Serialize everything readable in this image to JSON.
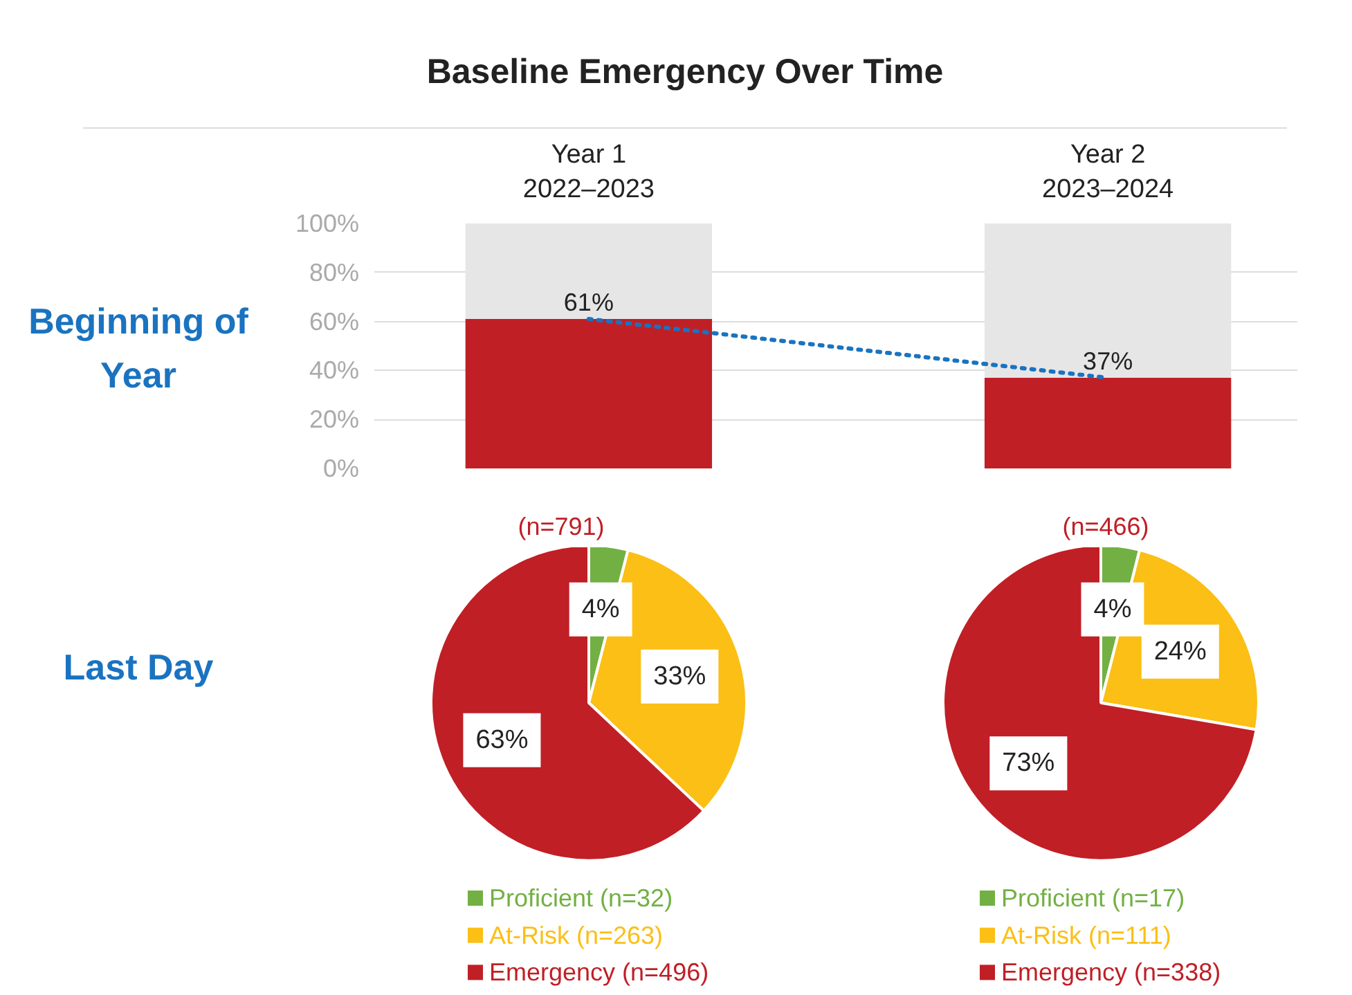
{
  "chart_data": [
    {
      "type": "bar",
      "title": "Baseline Emergency Over Time",
      "categories": [
        "Year 1",
        "Year 2"
      ],
      "stacked": true,
      "ylim": [
        0,
        100
      ],
      "yticks": [
        {
          "value": 0,
          "label": "0%"
        },
        {
          "value": 20,
          "label": "20%"
        },
        {
          "value": 40,
          "label": "40%"
        },
        {
          "value": 60,
          "label": "60%"
        },
        {
          "value": 80,
          "label": "80%"
        },
        {
          "value": 100,
          "label": "100%"
        }
      ],
      "grid": "y",
      "annotations": [
        "Beginning of Year",
        "2022–2023",
        "2023–2024"
      ],
      "series": [
        {
          "color": "#c01f26",
          "values": [
            61,
            37
          ],
          "value_labels": [
            "61%",
            "37%"
          ]
        },
        {
          "color": "#e6e6e6",
          "values": [
            39,
            63
          ]
        },
        {
          "type": "line",
          "color": "#1a73c0",
          "values": [
            61,
            37
          ],
          "line_style": "dotted",
          "marker": "none"
        }
      ]
    },
    {
      "type": "pie",
      "title": "(n=791)",
      "categories": [
        "Proficient (n=32)",
        "At-Risk (n=263)",
        "Emergency (n=496)"
      ],
      "values": [
        4,
        33,
        63
      ],
      "colors": [
        "#72b043",
        "#fbbf15",
        "#c01f26"
      ],
      "value_labels": [
        "4%",
        "33%",
        "63%"
      ],
      "legend": "bottom",
      "annotations": [
        "Last Day"
      ]
    },
    {
      "type": "pie",
      "title": "(n=466)",
      "categories": [
        "Proficient (n=17)",
        "At-Risk (n=111)",
        "Emergency (n=338)"
      ],
      "values": [
        4,
        24,
        73
      ],
      "colors": [
        "#72b043",
        "#fbbf15",
        "#c01f26"
      ],
      "value_labels": [
        "4%",
        "24%",
        "73%"
      ],
      "legend": "bottom"
    }
  ]
}
